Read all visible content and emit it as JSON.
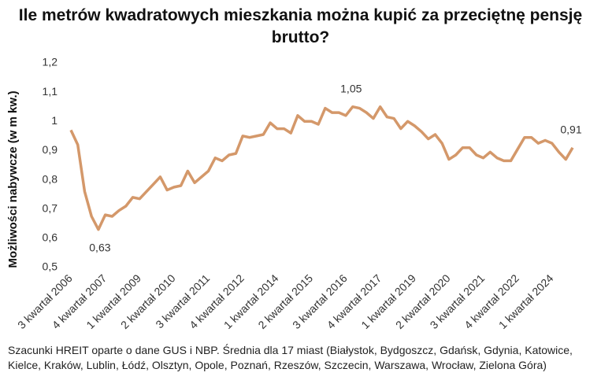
{
  "chart_data": {
    "type": "line",
    "title": "Ile metrów kwadratowych mieszkania można kupić za przeciętnę pensję brutto?",
    "y_label": "Możliwości nabywcze (w m kw.)",
    "footnote": "Szacunki HREIT oparte o dane GUS i NBP. Średnia dla 17 miast (Białystok, Bydgoszcz, Gdańsk, Gdynia, Katowice, Kielce, Kraków, Lublin, Łódź, Olsztyn, Opole, Poznań, Rzeszów, Szczecin, Warszawa, Wrocław, Zielona Góra)",
    "categories": [
      "3 kwartał 2006",
      null,
      null,
      null,
      null,
      "4 kwartał 2007",
      null,
      null,
      null,
      null,
      "1 kwartał 2009",
      null,
      null,
      null,
      null,
      "2 kwartał 2010",
      null,
      null,
      null,
      null,
      "3 kwartał 2011",
      null,
      null,
      null,
      null,
      "4 kwartał 2012",
      null,
      null,
      null,
      null,
      "1 kwartał 2014",
      null,
      null,
      null,
      null,
      "2 kwartał 2015",
      null,
      null,
      null,
      null,
      "3 kwartał 2016",
      null,
      null,
      null,
      null,
      "4 kwartał 2017",
      null,
      null,
      null,
      null,
      "1 kwartał 2019",
      null,
      null,
      null,
      null,
      "2 kwartał 2020",
      null,
      null,
      null,
      null,
      "3 kwartał 2021",
      null,
      null,
      null,
      null,
      "4 kwartał 2022",
      null,
      null,
      null,
      null,
      "1 kwartał 2024",
      null,
      null,
      null
    ],
    "series": [
      {
        "name": "Możliwości nabywcze",
        "color": "#d4986a",
        "values": [
          0.97,
          0.92,
          0.76,
          0.675,
          0.63,
          0.68,
          0.675,
          0.695,
          0.71,
          0.74,
          0.735,
          0.76,
          0.785,
          0.81,
          0.765,
          0.775,
          0.78,
          0.83,
          0.79,
          0.81,
          0.83,
          0.875,
          0.865,
          0.885,
          0.89,
          0.95,
          0.945,
          0.95,
          0.955,
          0.995,
          0.975,
          0.975,
          0.96,
          1.02,
          1.0,
          1.0,
          0.99,
          1.045,
          1.03,
          1.03,
          1.02,
          1.05,
          1.045,
          1.03,
          1.01,
          1.05,
          1.015,
          1.01,
          0.975,
          1.0,
          0.985,
          0.965,
          0.94,
          0.955,
          0.925,
          0.87,
          0.885,
          0.91,
          0.91,
          0.885,
          0.875,
          0.895,
          0.875,
          0.865,
          0.865,
          0.905,
          0.945,
          0.945,
          0.925,
          0.935,
          0.925,
          0.895,
          0.87,
          0.91
        ],
        "value_labels": [
          null,
          null,
          null,
          null,
          "0,63",
          null,
          null,
          null,
          null,
          null,
          null,
          null,
          null,
          null,
          null,
          null,
          null,
          null,
          null,
          null,
          null,
          null,
          null,
          null,
          null,
          null,
          null,
          null,
          null,
          null,
          null,
          null,
          null,
          null,
          null,
          null,
          null,
          null,
          null,
          null,
          null,
          "1,05",
          null,
          null,
          null,
          null,
          null,
          null,
          null,
          null,
          null,
          null,
          null,
          null,
          null,
          null,
          null,
          null,
          null,
          null,
          null,
          null,
          null,
          null,
          null,
          null,
          null,
          null,
          null,
          null,
          null,
          null,
          null,
          "0,91"
        ]
      }
    ],
    "ylim": [
      0.5,
      1.2
    ],
    "yticks": [
      {
        "value": 0.5,
        "label": "0,5"
      },
      {
        "value": 0.6,
        "label": "0,6"
      },
      {
        "value": 0.7,
        "label": "0,7"
      },
      {
        "value": 0.8,
        "label": "0,8"
      },
      {
        "value": 0.9,
        "label": "0,9"
      },
      1,
      {
        "value": 1.1,
        "label": "1,1"
      },
      {
        "value": 1.2,
        "label": "1,2"
      }
    ],
    "grid": false
  }
}
